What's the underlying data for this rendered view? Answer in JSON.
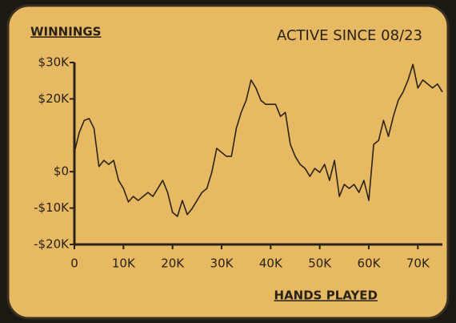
{
  "chart_data": {
    "type": "line",
    "y_label": "WINNINGS",
    "subtitle": "ACTIVE SINCE 08/23",
    "x_label": "HANDS PLAYED",
    "color": "#2b2418",
    "x": [
      0,
      1000,
      2000,
      3000,
      4000,
      5000,
      6000,
      7000,
      8000,
      9000,
      10000,
      11000,
      12000,
      13000,
      14000,
      15000,
      16000,
      17000,
      18000,
      19000,
      20000,
      21000,
      22000,
      23000,
      24000,
      25000,
      26000,
      27000,
      28000,
      29000,
      30000,
      31000,
      32000,
      33000,
      34000,
      35000,
      36000,
      37000,
      38000,
      39000,
      40000,
      41000,
      42000,
      43000,
      44000,
      45000,
      46000,
      47000,
      48000,
      49000,
      50000,
      51000,
      52000,
      53000,
      54000,
      55000,
      56000,
      57000,
      58000,
      59000,
      60000,
      61000,
      62000,
      63000,
      64000,
      65000,
      66000,
      67000,
      68000,
      69000,
      70000,
      71000,
      72000,
      73000,
      74000,
      75000
    ],
    "values": [
      5300,
      10800,
      14100,
      14600,
      11900,
      1400,
      3100,
      2000,
      3100,
      -2400,
      -4600,
      -8300,
      -6800,
      -7900,
      -6800,
      -5700,
      -6800,
      -4600,
      -2400,
      -5700,
      -11200,
      -12300,
      -7900,
      -11800,
      -10100,
      -7900,
      -5700,
      -4600,
      -200,
      6400,
      5300,
      4200,
      4200,
      11900,
      16300,
      19600,
      25200,
      23000,
      19600,
      18500,
      18500,
      18500,
      15200,
      16300,
      7500,
      4200,
      2000,
      900,
      -1300,
      900,
      -200,
      2000,
      -2400,
      3100,
      -6800,
      -3500,
      -4600,
      -3500,
      -5700,
      -2400,
      -7900,
      7500,
      8600,
      14100,
      9700,
      15200,
      19600,
      21900,
      25200,
      29500,
      23000,
      25200,
      24100,
      23000,
      24100,
      21900
    ],
    "xlim": [
      0,
      75000
    ],
    "xticks": [
      0,
      {
        "value": 10000,
        "label": "10K"
      },
      {
        "value": 20000,
        "label": "20K"
      },
      {
        "value": 30000,
        "label": "30K"
      },
      {
        "value": 40000,
        "label": "40K"
      },
      {
        "value": 50000,
        "label": "50K"
      },
      {
        "value": 60000,
        "label": "60K"
      },
      {
        "value": 70000,
        "label": "70K"
      }
    ],
    "ylim": [
      -20000,
      30000
    ],
    "yticks": [
      {
        "value": 30000,
        "label": "$30K"
      },
      {
        "value": 20000,
        "label": "$20K"
      },
      {
        "value": 0,
        "label": "$0"
      },
      {
        "value": -10000,
        "label": "-$10K"
      },
      {
        "value": -20000,
        "label": "-$20K"
      }
    ],
    "grid": false
  }
}
